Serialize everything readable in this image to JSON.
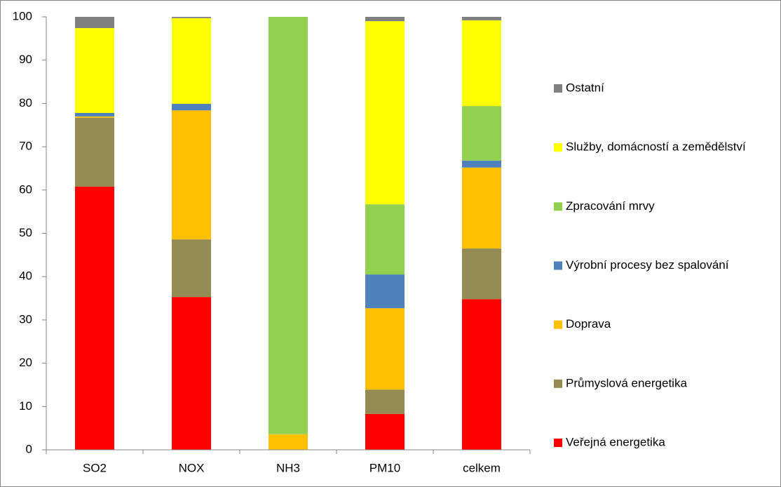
{
  "chart_data": {
    "type": "bar",
    "stacked": true,
    "categories": [
      "SO2",
      "NOX",
      "NH3",
      "PM10",
      "celkem"
    ],
    "series": [
      {
        "name": "Veřejná energetika",
        "color": "#ff0000",
        "values": [
          60.8,
          35.3,
          0,
          8.3,
          34.8
        ]
      },
      {
        "name": "Průmyslová energetika",
        "color": "#948a54",
        "values": [
          15.9,
          13.3,
          0,
          5.6,
          11.7
        ]
      },
      {
        "name": "Doprava",
        "color": "#ffc000",
        "values": [
          0.3,
          29.8,
          3.6,
          18.8,
          18.7
        ]
      },
      {
        "name": "Výrobní procesy bez spalování",
        "color": "#4f81bd",
        "values": [
          0.8,
          1.5,
          0,
          7.8,
          1.6
        ]
      },
      {
        "name": "Zpracování mrvy",
        "color": "#92d050",
        "values": [
          0,
          0,
          96.4,
          16.2,
          12.6
        ]
      },
      {
        "name": "Služby, domácností a zemědělství",
        "color": "#ffff00",
        "values": [
          19.6,
          19.8,
          0,
          42.3,
          19.8
        ]
      },
      {
        "name": "Ostatní",
        "color": "#808080",
        "values": [
          2.6,
          0.3,
          0,
          1.0,
          0.8
        ]
      }
    ],
    "ylim": [
      0,
      100
    ],
    "yticks": [
      0,
      10,
      20,
      30,
      40,
      50,
      60,
      70,
      80,
      90,
      100
    ],
    "grid": false,
    "legend": "right"
  }
}
